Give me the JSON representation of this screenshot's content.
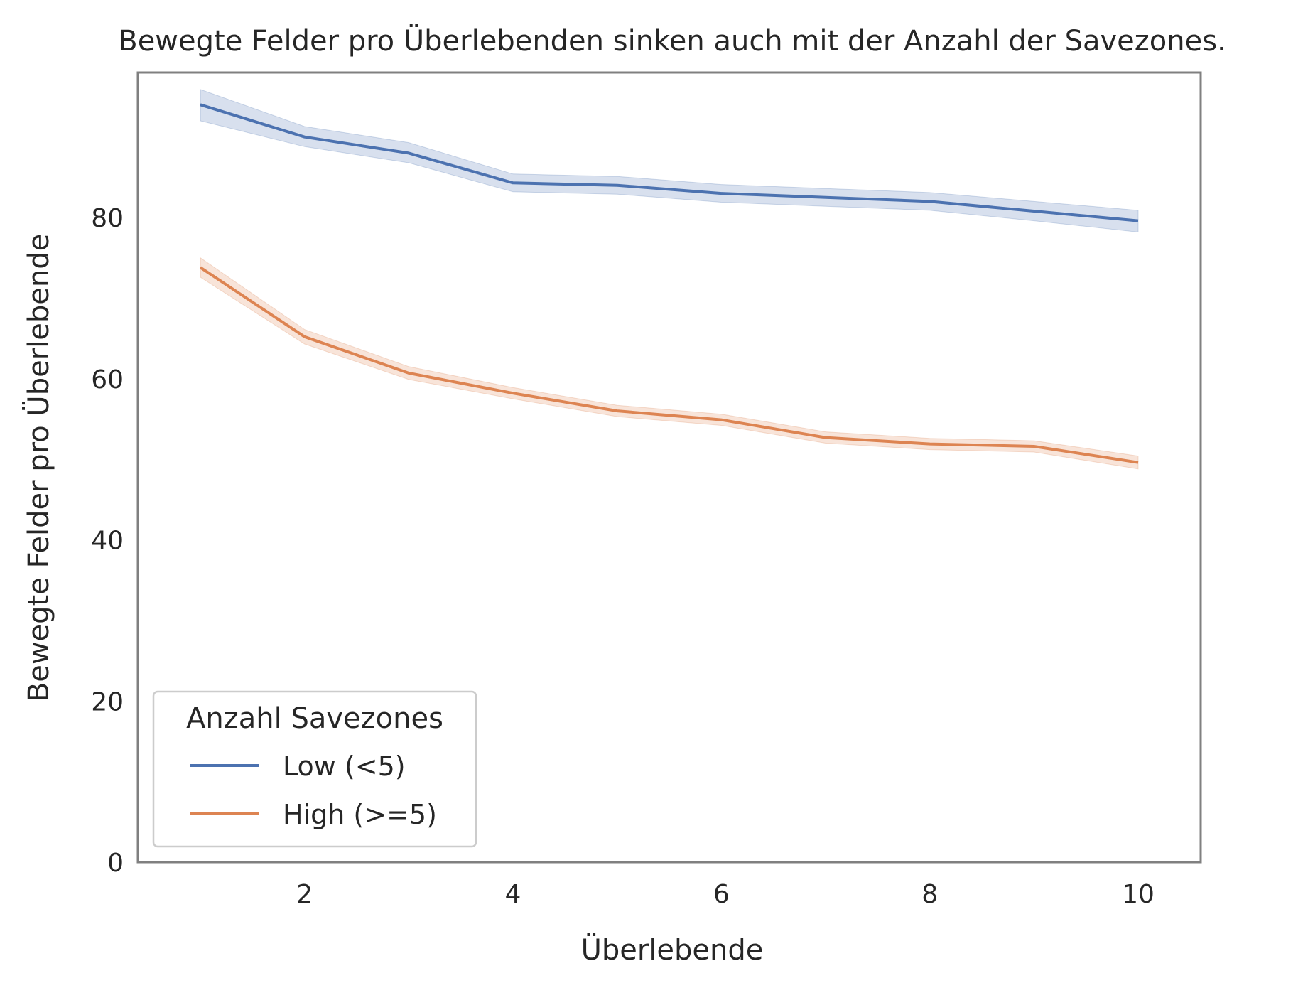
{
  "chart_data": {
    "type": "line",
    "title": "Bewegte Felder pro Überlebenden sinken auch mit der Anzahl der Savezones.",
    "xlabel": "Überlebende",
    "ylabel": "Bewegte Felder pro Überlebende",
    "xlim": [
      0.4,
      10.6
    ],
    "ylim": [
      0,
      98
    ],
    "x_ticks": [
      2,
      4,
      6,
      8,
      10
    ],
    "y_ticks": [
      0,
      20,
      40,
      60,
      80
    ],
    "grid": false,
    "legend": {
      "title": "Anzahl Savezones",
      "position": "lower-left"
    },
    "x": [
      1,
      2,
      3,
      4,
      5,
      6,
      7,
      8,
      9,
      10
    ],
    "series": [
      {
        "name": "Low (<5)",
        "color": "#4c72b0",
        "values": [
          94.0,
          90.0,
          88.0,
          84.3,
          84.0,
          83.0,
          82.5,
          82.0,
          80.8,
          79.6
        ],
        "ci_lower": [
          92.0,
          88.8,
          86.8,
          83.2,
          82.9,
          81.9,
          81.4,
          80.9,
          79.6,
          78.2
        ],
        "ci_upper": [
          95.9,
          91.3,
          89.3,
          85.4,
          85.1,
          84.1,
          83.6,
          83.1,
          82.0,
          80.9
        ]
      },
      {
        "name": "High (>=5)",
        "color": "#dd8452",
        "values": [
          73.8,
          65.2,
          60.7,
          58.2,
          56.0,
          54.9,
          52.7,
          51.9,
          51.6,
          49.6
        ],
        "ci_lower": [
          72.6,
          64.3,
          59.9,
          57.5,
          55.3,
          54.2,
          52.0,
          51.2,
          50.9,
          48.8
        ],
        "ci_upper": [
          75.0,
          66.1,
          61.5,
          58.9,
          56.7,
          55.6,
          53.4,
          52.6,
          52.3,
          50.4
        ]
      }
    ]
  }
}
